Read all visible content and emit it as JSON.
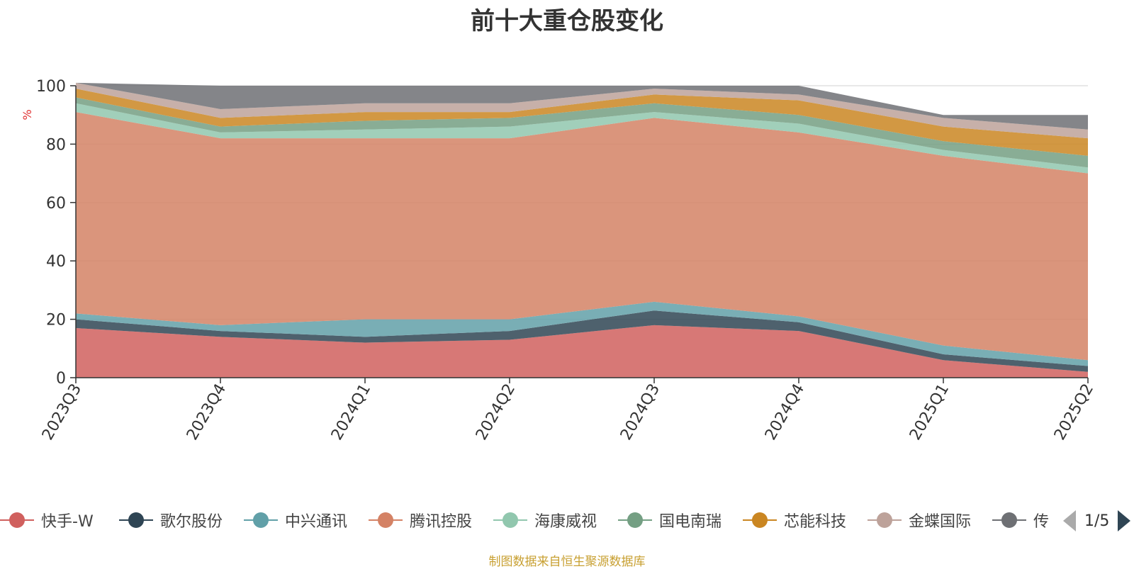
{
  "chart_data": {
    "type": "area",
    "title": "前十大重仓股变化",
    "ylabel": "%",
    "ylim": [
      0,
      100
    ],
    "y_ticks": [
      0,
      20,
      40,
      60,
      80,
      100
    ],
    "grid": true,
    "legend_position": "bottom",
    "categories": [
      "2023Q3",
      "2023Q4",
      "2024Q1",
      "2024Q2",
      "2024Q3",
      "2024Q4",
      "2025Q1",
      "2025Q2"
    ],
    "series": [
      {
        "name": "快手-W",
        "color": "#d0605e",
        "values": [
          17,
          14,
          12,
          13,
          18,
          16,
          6,
          2
        ]
      },
      {
        "name": "歌尔股份",
        "color": "#2f4554",
        "values": [
          3,
          2,
          2,
          3,
          5,
          3,
          2,
          2
        ]
      },
      {
        "name": "中兴通讯",
        "color": "#61a0a8",
        "values": [
          2,
          2,
          6,
          4,
          3,
          2,
          3,
          2
        ]
      },
      {
        "name": "腾讯控股",
        "color": "#d48265",
        "values": [
          69,
          64,
          62,
          62,
          63,
          63,
          65,
          64
        ]
      },
      {
        "name": "海康威视",
        "color": "#91c7ae",
        "values": [
          3,
          2,
          3,
          4,
          2,
          3,
          2,
          2
        ]
      },
      {
        "name": "国电南瑞",
        "color": "#749f83",
        "values": [
          2,
          2,
          3,
          3,
          3,
          3,
          3,
          4
        ]
      },
      {
        "name": "芯能科技",
        "color": "#ca8622",
        "values": [
          3,
          3,
          3,
          2,
          3,
          5,
          5,
          6
        ]
      },
      {
        "name": "金蝶国际",
        "color": "#bda29a",
        "values": [
          2,
          3,
          3,
          3,
          2,
          2,
          3,
          3
        ]
      },
      {
        "name": "传音控股",
        "color": "#6e7074",
        "values": [
          0,
          8,
          6,
          6,
          1,
          3,
          1,
          5
        ]
      }
    ]
  },
  "legend": {
    "page_indicator": "1/5"
  },
  "source_note": "制图数据来自恒生聚源数据库"
}
